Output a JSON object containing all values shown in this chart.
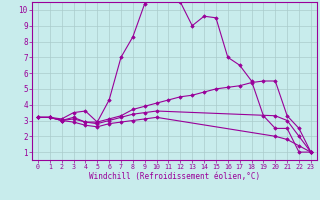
{
  "xlabel": "Windchill (Refroidissement éolien,°C)",
  "xlim": [
    -0.5,
    23.5
  ],
  "ylim": [
    0.5,
    10.5
  ],
  "yticks": [
    1,
    2,
    3,
    4,
    5,
    6,
    7,
    8,
    9,
    10
  ],
  "xticks": [
    0,
    1,
    2,
    3,
    4,
    5,
    6,
    7,
    8,
    9,
    10,
    11,
    12,
    13,
    14,
    15,
    16,
    17,
    18,
    19,
    20,
    21,
    22,
    23
  ],
  "bg_color": "#c8ecec",
  "line_color": "#990099",
  "grid_color": "#aacccc",
  "series": [
    {
      "x": [
        0,
        1,
        2,
        3,
        4,
        5,
        6,
        7,
        8,
        9,
        10,
        11,
        12,
        13,
        14,
        15,
        16,
        17,
        18,
        19,
        20,
        21,
        22,
        23
      ],
      "y": [
        3.2,
        3.2,
        3.1,
        3.5,
        3.6,
        2.9,
        4.3,
        7.0,
        8.3,
        10.4,
        10.7,
        10.7,
        10.5,
        9.0,
        9.6,
        9.5,
        7.0,
        6.5,
        5.5,
        3.3,
        2.5,
        2.5,
        1.0,
        1.0
      ]
    },
    {
      "x": [
        0,
        1,
        2,
        3,
        4,
        5,
        6,
        7,
        8,
        9,
        10,
        11,
        12,
        13,
        14,
        15,
        16,
        17,
        18,
        19,
        20,
        21,
        22,
        23
      ],
      "y": [
        3.2,
        3.2,
        3.0,
        3.2,
        2.9,
        2.9,
        3.1,
        3.3,
        3.7,
        3.9,
        4.1,
        4.3,
        4.5,
        4.6,
        4.8,
        5.0,
        5.1,
        5.2,
        5.4,
        5.5,
        5.5,
        3.3,
        2.5,
        1.0
      ]
    },
    {
      "x": [
        0,
        1,
        2,
        3,
        4,
        5,
        6,
        7,
        8,
        9,
        10,
        20,
        21,
        22,
        23
      ],
      "y": [
        3.2,
        3.2,
        3.0,
        3.1,
        2.9,
        2.8,
        3.0,
        3.2,
        3.4,
        3.5,
        3.6,
        3.3,
        3.0,
        2.0,
        1.0
      ]
    },
    {
      "x": [
        0,
        1,
        2,
        3,
        4,
        5,
        6,
        7,
        8,
        9,
        10,
        20,
        21,
        22,
        23
      ],
      "y": [
        3.2,
        3.2,
        3.0,
        2.9,
        2.7,
        2.6,
        2.8,
        2.9,
        3.0,
        3.1,
        3.2,
        2.0,
        1.8,
        1.4,
        1.0
      ]
    }
  ]
}
